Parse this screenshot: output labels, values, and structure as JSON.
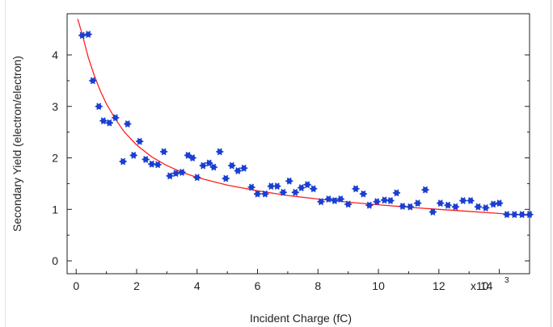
{
  "chart_data": {
    "type": "scatter",
    "xlabel": "Incident Charge (fC)",
    "ylabel": "Secondary Yield (electron/electron)",
    "x_multiplier_label": "x10",
    "x_multiplier_exponent": "3",
    "xlim": [
      -0.3,
      15.0
    ],
    "ylim": [
      -0.25,
      4.8
    ],
    "xticks": [
      0,
      2,
      4,
      6,
      8,
      10,
      12,
      14
    ],
    "xtick_labels": [
      "0",
      "2",
      "4",
      "6",
      "8",
      "10",
      "12",
      "14"
    ],
    "yticks": [
      0,
      1,
      2,
      3,
      4
    ],
    "ytick_labels": [
      "0",
      "1",
      "2",
      "3",
      "4"
    ],
    "grid": false,
    "legend": "none",
    "colors": {
      "points": "#1a3fd1",
      "fit": "#ff2020",
      "axes": "#222222"
    },
    "series": [
      {
        "kind": "points",
        "x": [
          0.2,
          0.4,
          0.55,
          0.75,
          0.9,
          1.1,
          1.3,
          1.55,
          1.7,
          1.9,
          2.1,
          2.3,
          2.5,
          2.7,
          2.9,
          3.1,
          3.3,
          3.5,
          3.7,
          3.85,
          4.0,
          4.2,
          4.4,
          4.55,
          4.75,
          4.95,
          5.15,
          5.35,
          5.55,
          5.8,
          6.0,
          6.25,
          6.45,
          6.65,
          6.85,
          7.05,
          7.25,
          7.45,
          7.65,
          7.85,
          8.1,
          8.35,
          8.55,
          8.75,
          9.0,
          9.25,
          9.5,
          9.7,
          9.95,
          10.2,
          10.4,
          10.6,
          10.8,
          11.05,
          11.3,
          11.55,
          11.8,
          12.05,
          12.3,
          12.55,
          12.8,
          13.05,
          13.3,
          13.55,
          13.8,
          14.0,
          14.25,
          14.5,
          14.75,
          15.0
        ],
        "y": [
          4.38,
          4.4,
          3.5,
          3.0,
          2.72,
          2.68,
          2.78,
          1.93,
          2.66,
          2.05,
          2.32,
          1.97,
          1.88,
          1.87,
          2.12,
          1.65,
          1.7,
          1.72,
          2.05,
          2.0,
          1.62,
          1.85,
          1.9,
          1.82,
          2.12,
          1.6,
          1.85,
          1.75,
          1.8,
          1.43,
          1.3,
          1.3,
          1.45,
          1.45,
          1.33,
          1.55,
          1.33,
          1.42,
          1.48,
          1.4,
          1.15,
          1.2,
          1.17,
          1.2,
          1.1,
          1.4,
          1.3,
          1.08,
          1.15,
          1.18,
          1.17,
          1.32,
          1.06,
          1.05,
          1.12,
          1.38,
          0.95,
          1.12,
          1.08,
          1.05,
          1.17,
          1.17,
          1.05,
          1.03,
          1.1,
          1.12,
          0.9,
          0.9,
          0.9,
          0.9
        ]
      },
      {
        "kind": "fit",
        "x": [
          0.05,
          0.2,
          0.4,
          0.6,
          0.8,
          1.0,
          1.3,
          1.6,
          2.0,
          2.5,
          3.0,
          3.5,
          4.0,
          5.0,
          6.0,
          7.0,
          8.0,
          9.0,
          10.0,
          11.0,
          12.0,
          13.0,
          14.0,
          15.0
        ],
        "y": [
          4.7,
          4.4,
          3.95,
          3.6,
          3.3,
          3.05,
          2.75,
          2.5,
          2.25,
          2.02,
          1.85,
          1.72,
          1.62,
          1.47,
          1.36,
          1.27,
          1.2,
          1.14,
          1.09,
          1.04,
          1.0,
          0.96,
          0.92,
          0.88
        ]
      }
    ]
  }
}
